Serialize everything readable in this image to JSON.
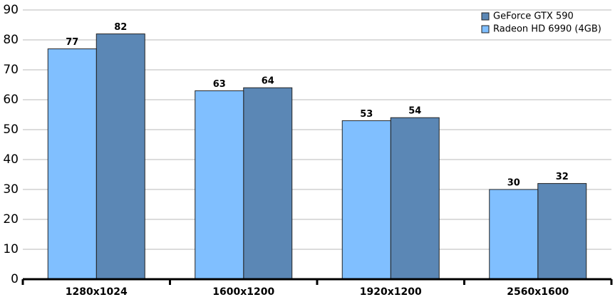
{
  "chart_data": {
    "type": "bar",
    "categories": [
      "1280x1024",
      "1600x1200",
      "1920x1200",
      "2560x1600"
    ],
    "series": [
      {
        "name": "GeForce GTX 590",
        "color": "#5b87b5",
        "values": [
          82,
          64,
          54,
          32
        ]
      },
      {
        "name": "Radeon HD 6990 (4GB)",
        "color": "#80bfff",
        "values": [
          77,
          63,
          53,
          30
        ]
      }
    ],
    "ylim": [
      0,
      90
    ],
    "yticks": [
      0,
      10,
      20,
      30,
      40,
      50,
      60,
      70,
      80,
      90
    ],
    "grid": true,
    "legend": "top-right"
  }
}
